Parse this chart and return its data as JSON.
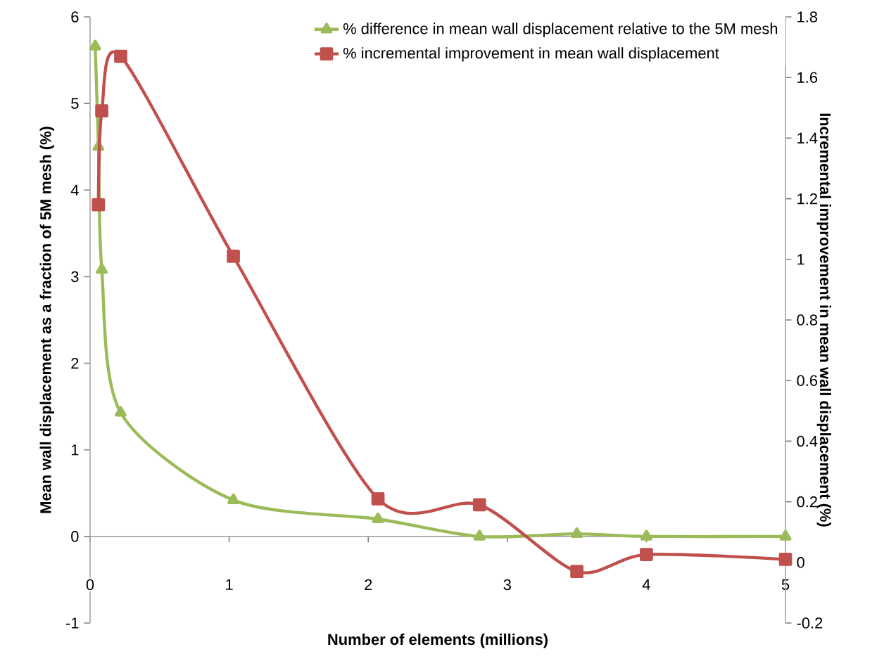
{
  "chart_data": {
    "type": "line",
    "xlabel": "Number of elements (millions)",
    "ylabel": "Mean wall displacement as a fraction of 5M mesh (%)",
    "y2label": "Incremental  improvement in mean wall displacement (%)",
    "xlim": [
      0,
      5
    ],
    "xticks": [
      0,
      1,
      2,
      3,
      4,
      5
    ],
    "ylim": [
      -1,
      6
    ],
    "yticks": [
      -1,
      0,
      1,
      2,
      3,
      4,
      5,
      6
    ],
    "y2lim": [
      -0.2,
      1.8
    ],
    "y2ticks": [
      -0.2,
      0,
      0.2,
      0.4,
      0.6,
      0.8,
      1,
      1.2,
      1.4,
      1.6,
      1.8
    ],
    "legend": "top right",
    "line_style": "solid",
    "series": [
      {
        "name": "% difference in mean wall displacement relative to the 5M mesh",
        "color": "#9bbb59",
        "marker": "triangle",
        "x": [
          0.037,
          0.06,
          0.084,
          0.22,
          1.03,
          2.07,
          2.8,
          3.5,
          4,
          5
        ],
        "values": [
          5.66,
          4.5,
          3.08,
          1.43,
          0.42,
          0.2,
          0,
          0.03,
          0,
          0
        ]
      },
      {
        "name": "% incremental improvement in mean wall displacement",
        "color": "#c0504d",
        "marker": "square",
        "axis": "y2",
        "x": [
          0.06,
          0.084,
          0.22,
          1.03,
          2.07,
          2.8,
          3.5,
          4,
          5
        ],
        "values": [
          1.18,
          1.49,
          1.67,
          1.01,
          0.21,
          0.19,
          -0.03,
          0.026,
          0.01
        ]
      }
    ]
  }
}
